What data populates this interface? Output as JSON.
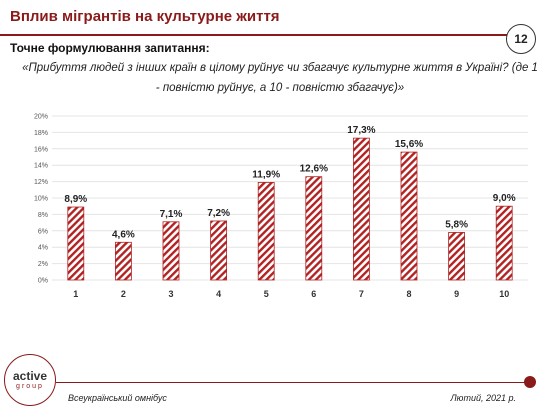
{
  "header": {
    "title": "Вплив мігрантів на культурне життя",
    "page_number": "12"
  },
  "question": {
    "label": "Точне формулювання запитання:",
    "text": "«Прибуття людей з інших країн в цілому руйнує чи збагачує культурне життя в Україні? (де 1 - повністю руйнує, а 10 - повністю збагачує)»"
  },
  "chart_data": {
    "type": "bar",
    "categories": [
      "1",
      "2",
      "3",
      "4",
      "5",
      "6",
      "7",
      "8",
      "9",
      "10"
    ],
    "values": [
      8.9,
      4.6,
      7.1,
      7.2,
      11.9,
      12.6,
      17.3,
      15.6,
      5.8,
      9.0
    ],
    "data_labels": [
      "8,9%",
      "4,6%",
      "7,1%",
      "7,2%",
      "11,9%",
      "12,6%",
      "17,3%",
      "15,6%",
      "5,8%",
      "9,0%"
    ],
    "y_ticks": [
      "0%",
      "2%",
      "4%",
      "6%",
      "8%",
      "10%",
      "12%",
      "14%",
      "16%",
      "18%",
      "20%"
    ],
    "ylim": [
      0,
      20
    ],
    "grid": true,
    "bar_fill": "hatched",
    "colors": {
      "bar": "#b22222",
      "grid": "#e4e4e4"
    }
  },
  "footer": {
    "left": "Всеукраїнський омнібус",
    "right": "Лютий, 2021 р.",
    "logo_main": "active",
    "logo_sub": "group"
  },
  "colors": {
    "accent": "#8b1a1a"
  }
}
